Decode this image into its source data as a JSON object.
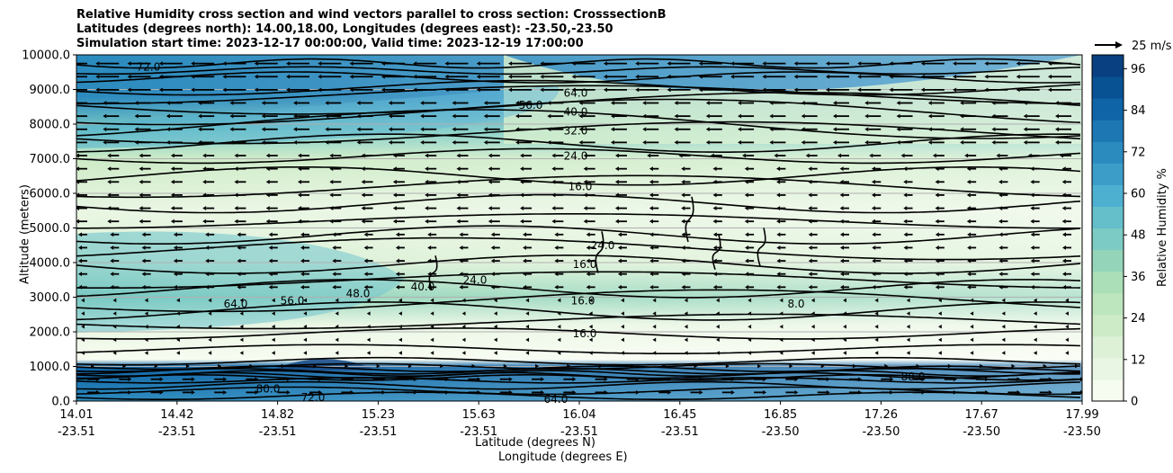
{
  "titles": {
    "line1": "Relative Humidity cross section and wind vectors parallel to cross section: CrosssectionB",
    "line2": "Latitudes (degrees north): 14.00,18.00, Longitudes (degrees east): -23.50,-23.50",
    "line3": "Simulation start time: 2023-12-17 00:00:00, Valid time: 2023-12-19 17:00:00"
  },
  "chart_data": {
    "type": "heatmap",
    "title": "Relative Humidity cross section and wind vectors parallel to cross section: CrosssectionB",
    "ylabel": "Altitude (meters)",
    "xlabel_lat": "Latitude (degrees N)",
    "xlabel_lon": "Longitude (degrees E)",
    "ylim": [
      0,
      10000
    ],
    "yticks": [
      "0.0",
      "1000.0",
      "2000.0",
      "3000.0",
      "4000.0",
      "5000.0",
      "6000.0",
      "7000.0",
      "8000.0",
      "9000.0",
      "10000.0"
    ],
    "xticks": [
      {
        "lat": "14.01",
        "lon": "-23.51"
      },
      {
        "lat": "14.42",
        "lon": "-23.51"
      },
      {
        "lat": "14.82",
        "lon": "-23.51"
      },
      {
        "lat": "15.23",
        "lon": "-23.51"
      },
      {
        "lat": "15.63",
        "lon": "-23.51"
      },
      {
        "lat": "16.04",
        "lon": "-23.51"
      },
      {
        "lat": "16.45",
        "lon": "-23.51"
      },
      {
        "lat": "16.85",
        "lon": "-23.50"
      },
      {
        "lat": "17.26",
        "lon": "-23.50"
      },
      {
        "lat": "17.67",
        "lon": "-23.50"
      },
      {
        "lat": "17.99",
        "lon": "-23.50"
      }
    ],
    "grid": "horizontal",
    "colorbar": {
      "label": "Relative Humidity %",
      "range": [
        0,
        100
      ],
      "ticks": [
        "0",
        "12",
        "24",
        "36",
        "48",
        "60",
        "72",
        "84",
        "96"
      ],
      "colors": [
        "#f7fcf0",
        "#e9f6e3",
        "#dcf1d6",
        "#cdebc6",
        "#bde5be",
        "#aadfb8",
        "#94d5b9",
        "#7ccbc4",
        "#64bfcb",
        "#4eb0d1",
        "#3b9dc8",
        "#2b8abe",
        "#1c77b3",
        "#0e64a6",
        "#085293",
        "#084081"
      ]
    },
    "wind_reference": "25 m/s",
    "contours": [
      {
        "label": "72.0",
        "alt": 9650
      },
      {
        "label": "64.0",
        "alt": 8900
      },
      {
        "label": "56.0",
        "alt": 8550
      },
      {
        "label": "40.0",
        "alt": 8350
      },
      {
        "label": "32.0",
        "alt": 7800
      },
      {
        "label": "24.0",
        "alt": 7080
      },
      {
        "label": "16.0",
        "alt": 6200
      },
      {
        "label": "16.0",
        "alt": 3950
      },
      {
        "label": "16.0",
        "alt": 2900
      },
      {
        "label": "16.0",
        "alt": 1950
      },
      {
        "label": "8.0",
        "alt": 2800
      },
      {
        "label": "64.0",
        "alt": 2800
      },
      {
        "label": "56.0",
        "alt": 2900
      },
      {
        "label": "48.0",
        "alt": 3100
      },
      {
        "label": "40.0",
        "alt": 3300
      },
      {
        "label": "24.0",
        "alt": 3500
      },
      {
        "label": "24.0",
        "alt": 4500
      },
      {
        "label": "80.0",
        "alt": 350
      },
      {
        "label": "72.0",
        "alt": 100
      },
      {
        "label": "64.0",
        "alt": 50
      },
      {
        "label": "88.0",
        "alt": 700
      }
    ]
  }
}
